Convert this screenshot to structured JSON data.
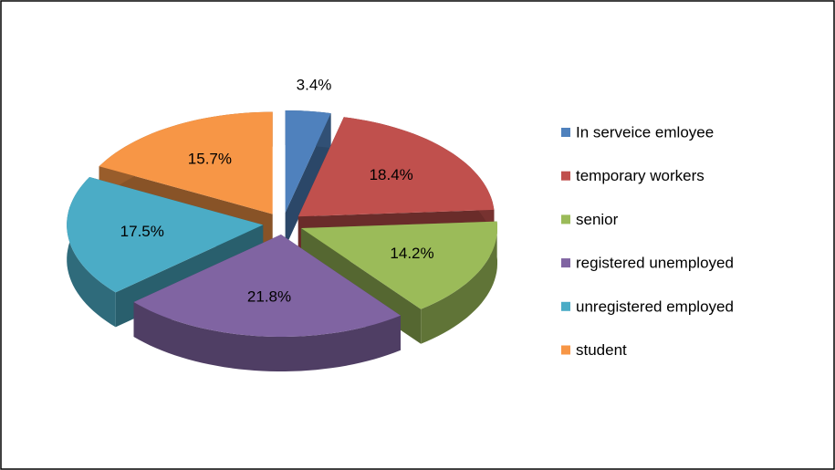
{
  "chart_data": {
    "type": "pie",
    "categories": [
      "In serveice emloyee",
      "temporary workers",
      "senior",
      "registered unemployed",
      "unregistered employed",
      "student"
    ],
    "values": [
      3.4,
      18.4,
      14.2,
      21.8,
      17.5,
      15.7
    ],
    "value_labels": [
      "3.4%",
      "18.4%",
      "14.2%",
      "21.8%",
      "17.5%",
      "15.7%"
    ],
    "colors": [
      "#4f81bd",
      "#c0504d",
      "#9bbb59",
      "#8064a2",
      "#4bacc6",
      "#f79646"
    ],
    "legend": "right"
  }
}
